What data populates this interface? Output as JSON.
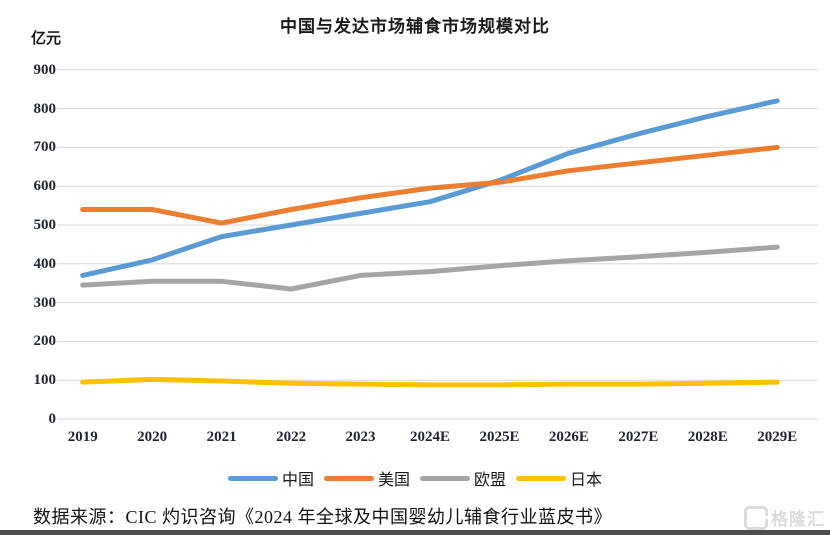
{
  "title": "中国与发达市场辅食市场规模对比",
  "unit_label": "亿元",
  "chart_data": {
    "type": "line",
    "categories": [
      "2019",
      "2020",
      "2021",
      "2022",
      "2023",
      "2024E",
      "2025E",
      "2026E",
      "2027E",
      "2028E",
      "2029E"
    ],
    "series": [
      {
        "name": "中国",
        "color": "#5B9BD5",
        "values": [
          370,
          410,
          470,
          500,
          530,
          560,
          615,
          685,
          735,
          780,
          820
        ]
      },
      {
        "name": "美国",
        "color": "#ED7D31",
        "values": [
          540,
          540,
          505,
          540,
          570,
          595,
          610,
          640,
          660,
          680,
          700
        ]
      },
      {
        "name": "欧盟",
        "color": "#A5A5A5",
        "values": [
          345,
          355,
          355,
          335,
          370,
          380,
          395,
          408,
          418,
          430,
          443
        ]
      },
      {
        "name": "日本",
        "color": "#FFC000",
        "values": [
          95,
          102,
          98,
          92,
          90,
          88,
          88,
          90,
          90,
          92,
          95
        ]
      }
    ],
    "ylim": [
      0,
      900
    ],
    "ytick_step": 100,
    "ylabel": "亿元",
    "grid": "horizontal",
    "legend_position": "bottom",
    "title": "中国与发达市场辅食市场规模对比"
  },
  "source_text": "数据来源：CIC 灼识咨询《2024 年全球及中国婴幼儿辅食行业蓝皮书》",
  "watermark": {
    "icon": "gelonghui-g-icon",
    "text": "格隆汇"
  }
}
